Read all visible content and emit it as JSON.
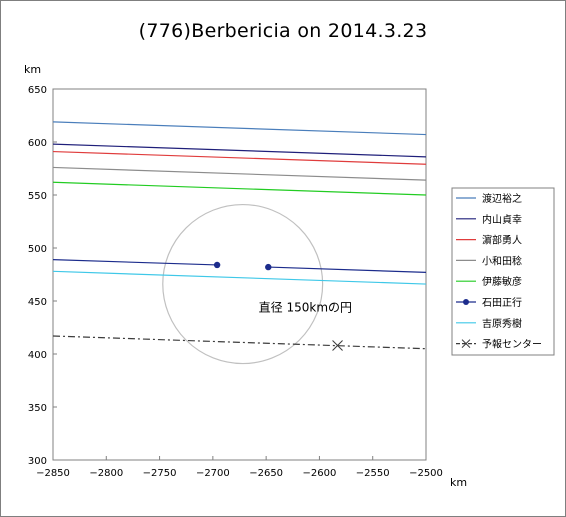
{
  "title": "(776)Berbericia on 2014.3.23",
  "chart_data": {
    "type": "line",
    "title": "(776)Berbericia on 2014.3.23",
    "xlabel": "km",
    "ylabel": "km",
    "xlim": [
      -2850,
      -2500
    ],
    "ylim": [
      300,
      650
    ],
    "xticks": [
      -2850,
      -2800,
      -2750,
      -2700,
      -2650,
      -2600,
      -2550,
      -2500
    ],
    "yticks": [
      300,
      350,
      400,
      450,
      500,
      550,
      600,
      650
    ],
    "xtick_labels": [
      "−2850",
      "−2800",
      "−2750",
      "−2700",
      "−2650",
      "−2600",
      "−2550",
      "−2500"
    ],
    "ytick_labels": [
      "300",
      "350",
      "400",
      "450",
      "500",
      "550",
      "600",
      "650"
    ],
    "grid": false,
    "legend_position": "right",
    "series": [
      {
        "name": "渡辺裕之",
        "color": "#4a7ebb",
        "segments": [
          [
            [
              -2850,
              619
            ],
            [
              -2500,
              607
            ]
          ]
        ]
      },
      {
        "name": "内山貞幸",
        "color": "#1f1f7a",
        "segments": [
          [
            [
              -2850,
              598
            ],
            [
              -2500,
              586
            ]
          ]
        ]
      },
      {
        "name": "濵部勇人",
        "color": "#e03c3c",
        "segments": [
          [
            [
              -2850,
              591
            ],
            [
              -2500,
              579
            ]
          ]
        ]
      },
      {
        "name": "小和田稔",
        "color": "#8c8c8c",
        "segments": [
          [
            [
              -2850,
              576
            ],
            [
              -2500,
              564
            ]
          ]
        ]
      },
      {
        "name": "伊藤敏彦",
        "color": "#22cc22",
        "segments": [
          [
            [
              -2850,
              562
            ],
            [
              -2500,
              550
            ]
          ]
        ]
      },
      {
        "name": "石田正行",
        "color": "#1c2c8c",
        "marker": "dot",
        "segments": [
          [
            [
              -2850,
              489
            ],
            [
              -2696,
              484
            ]
          ],
          [
            [
              -2648,
              482
            ],
            [
              -2500,
              477
            ]
          ]
        ],
        "markers": [
          [
            -2696,
            484
          ],
          [
            -2648,
            482
          ]
        ]
      },
      {
        "name": "吉原秀樹",
        "color": "#3fc8e8",
        "segments": [
          [
            [
              -2850,
              478
            ],
            [
              -2500,
              466
            ]
          ]
        ]
      },
      {
        "name": "予報センター",
        "color": "#3c3c3c",
        "dashed": true,
        "marker": "x",
        "segments": [
          [
            [
              -2850,
              417
            ],
            [
              -2500,
              405
            ]
          ]
        ],
        "markers": [
          [
            -2583,
            408
          ]
        ]
      }
    ],
    "circle": {
      "center": [
        -2672,
        466
      ],
      "radius": 75,
      "color": "#c0c0c0",
      "label": "直径 150kmの円",
      "label_pos": [
        -2657,
        440
      ]
    }
  }
}
